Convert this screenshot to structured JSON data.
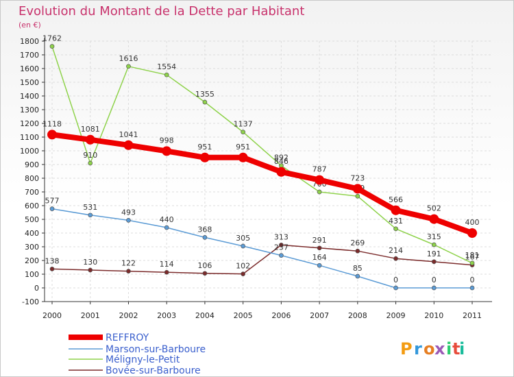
{
  "chart_data": {
    "type": "line",
    "title": "Evolution du Montant de la Dette par Habitant",
    "subtitle": "(en €)",
    "xlabel": "",
    "ylabel": "",
    "x": [
      "2000",
      "2001",
      "2002",
      "2003",
      "2004",
      "2005",
      "2006",
      "2007",
      "2008",
      "2009",
      "2010",
      "2011"
    ],
    "ylim": [
      -100,
      1800
    ],
    "yticks": [
      "-100",
      "0",
      "100",
      "200",
      "300",
      "400",
      "500",
      "600",
      "700",
      "800",
      "900",
      "1000",
      "1100",
      "1200",
      "1300",
      "1400",
      "1500",
      "1600",
      "1700",
      "1800"
    ],
    "grid": true,
    "legend_position": "bottom-left",
    "series": [
      {
        "name": "REFFROY",
        "color": "#ee0000",
        "values": [
          1118,
          1081,
          1041,
          998,
          951,
          951,
          846,
          787,
          723,
          566,
          502,
          400
        ],
        "labels": [
          "1118",
          "1081",
          "1041",
          "998",
          "951",
          "951",
          "846",
          "787",
          "723",
          "566",
          "502",
          "400"
        ]
      },
      {
        "name": "Marson-sur-Barboure",
        "color": "#5b9bd5",
        "values": [
          577,
          531,
          493,
          440,
          368,
          305,
          237,
          164,
          85,
          0,
          0,
          0
        ],
        "labels": [
          "577",
          "531",
          "493",
          "440",
          "368",
          "305",
          "237",
          "164",
          "85",
          "0",
          "0",
          "0"
        ]
      },
      {
        "name": "Méligny-le-Petit",
        "color": "#8ed24a",
        "values": [
          1762,
          910,
          1616,
          1554,
          1355,
          1137,
          892,
          700,
          669,
          431,
          315,
          181
        ],
        "labels": [
          "1762",
          "910",
          "1616",
          "1554",
          "1355",
          "1137",
          "892",
          "700",
          "669",
          "431",
          "315",
          "181"
        ]
      },
      {
        "name": "Bovée-sur-Barboure",
        "color": "#7b2b2b",
        "values": [
          138,
          130,
          122,
          114,
          106,
          102,
          313,
          291,
          269,
          214,
          191,
          167
        ],
        "labels": [
          "138",
          "130",
          "122",
          "114",
          "106",
          "102",
          "313",
          "291",
          "269",
          "214",
          "191",
          "167"
        ]
      }
    ]
  },
  "branding": {
    "logo_text": "Proxiti",
    "logo_colors": [
      "#f39c12",
      "#3498db",
      "#e67e22",
      "#9b59b6",
      "#2ecc71",
      "#e74c3c",
      "#1abc9c"
    ]
  }
}
